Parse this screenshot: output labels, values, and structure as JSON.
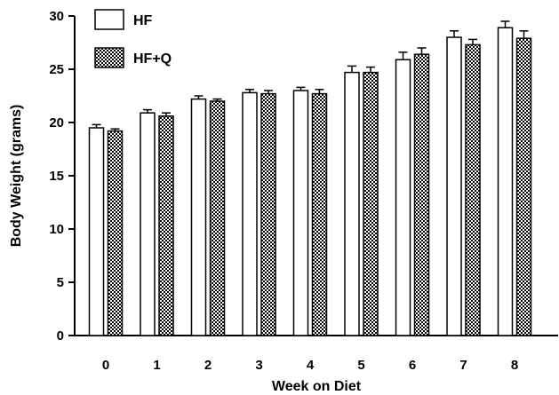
{
  "chart_data": {
    "type": "bar",
    "xlabel": "Week on Diet",
    "ylabel": "Body Weight (grams)",
    "ylim": [
      0,
      30
    ],
    "yticks": [
      0,
      5,
      10,
      15,
      20,
      25,
      30
    ],
    "categories": [
      "0",
      "1",
      "2",
      "3",
      "4",
      "5",
      "6",
      "7",
      "8"
    ],
    "grid": false,
    "legend_position": "top-left",
    "series": [
      {
        "name": "HF",
        "pattern": "open",
        "values": [
          19.5,
          20.9,
          22.2,
          22.8,
          23.0,
          24.7,
          25.9,
          28.0,
          28.9
        ],
        "errors": [
          0.3,
          0.3,
          0.3,
          0.3,
          0.3,
          0.6,
          0.7,
          0.6,
          0.6
        ]
      },
      {
        "name": "HF+Q",
        "pattern": "checkered",
        "values": [
          19.2,
          20.6,
          22.0,
          22.7,
          22.7,
          24.7,
          26.4,
          27.3,
          27.9
        ],
        "errors": [
          0.2,
          0.3,
          0.2,
          0.3,
          0.4,
          0.5,
          0.6,
          0.5,
          0.7
        ]
      }
    ],
    "colors": {
      "stroke": "#000000",
      "fill_open": "#ffffff",
      "check": "#000000"
    }
  }
}
